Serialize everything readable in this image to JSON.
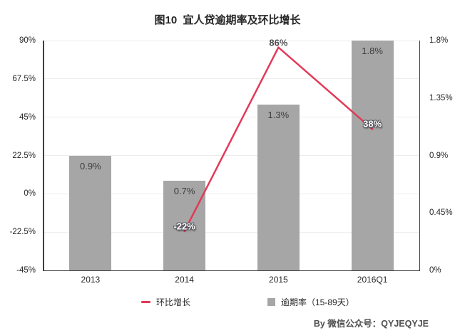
{
  "title": "图10  宜人贷逾期率及环比增长",
  "credit": "By 微信公众号：QYJEQYJE",
  "colors": {
    "bar": "#a6a6a6",
    "line": "#e23a57",
    "grid": "#ededed",
    "axis": "#3f3f3f"
  },
  "legend": [
    {
      "label": "环比增长",
      "marker": "line-icon",
      "color": "#e23a57"
    },
    {
      "label": "逾期率（15-89天）",
      "marker": "square-icon",
      "color": "#a6a6a6"
    }
  ],
  "chart_data": {
    "type": "bar+line combo",
    "title": "图10  宜人贷逾期率及环比增长",
    "categories": [
      "2013",
      "2014",
      "2015",
      "2016Q1"
    ],
    "series": [
      {
        "name": "逾期率（15-89天）",
        "type": "bar",
        "axis": "right",
        "values": [
          0.9,
          0.7,
          1.3,
          1.8
        ],
        "labels": [
          "0.9%",
          "0.7%",
          "1.3%",
          "1.8%"
        ],
        "color": "#a6a6a6"
      },
      {
        "name": "环比增长",
        "type": "line",
        "axis": "left",
        "values": [
          null,
          -22,
          86,
          38
        ],
        "labels": [
          null,
          "-22%",
          "86%",
          "38%"
        ],
        "label_themes": [
          null,
          "light",
          "dark",
          "light"
        ],
        "color": "#e23a57"
      }
    ],
    "left_axis": {
      "min": -45,
      "max": 90,
      "ticks": [
        {
          "label": "90%",
          "value": 90
        },
        {
          "label": "67.5%",
          "value": 67.5
        },
        {
          "label": "45%",
          "value": 45
        },
        {
          "label": "22.5%",
          "value": 22.5
        },
        {
          "label": "0%",
          "value": 0
        },
        {
          "label": "-22.5%",
          "value": -22.5
        },
        {
          "label": "-45%",
          "value": -45
        }
      ]
    },
    "right_axis": {
      "min": 0,
      "max": 1.8,
      "ticks": [
        {
          "label": "1.8%",
          "value": 1.8
        },
        {
          "label": "1.35%",
          "value": 1.35
        },
        {
          "label": "0.9%",
          "value": 0.9
        },
        {
          "label": "0.45%",
          "value": 0.45
        },
        {
          "label": "0%",
          "value": 0
        }
      ]
    },
    "grid": true,
    "legend_position": "bottom"
  }
}
